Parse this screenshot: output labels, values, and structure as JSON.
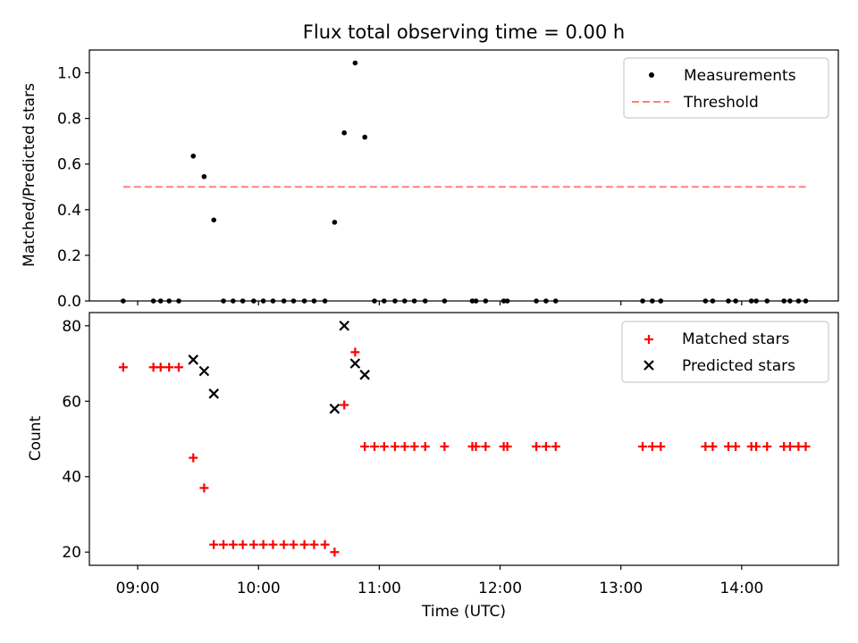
{
  "chart_data": {
    "title": "Flux total observing time = 0.00 h",
    "xlabel": "Time (UTC)",
    "xticks": [
      {
        "label": "09:00",
        "h": 9.0
      },
      {
        "label": "10:00",
        "h": 10.0
      },
      {
        "label": "11:00",
        "h": 11.0
      },
      {
        "label": "12:00",
        "h": 12.0
      },
      {
        "label": "13:00",
        "h": 13.0
      },
      {
        "label": "14:00",
        "h": 14.0
      }
    ],
    "xlim_hours": [
      8.6,
      14.8
    ],
    "panels": [
      {
        "type": "scatter",
        "ylabel": "Matched/Predicted stars",
        "ylim": [
          0,
          1.1
        ],
        "yticks": [
          {
            "label": "0.0",
            "v": 0.0
          },
          {
            "label": "0.2",
            "v": 0.2
          },
          {
            "label": "0.4",
            "v": 0.4
          },
          {
            "label": "0.6",
            "v": 0.6
          },
          {
            "label": "0.8",
            "v": 0.8
          },
          {
            "label": "1.0",
            "v": 1.0
          }
        ],
        "legend_position": "top-right",
        "series": [
          {
            "name": "Measurements",
            "marker": "dot",
            "color": "#000000",
            "points": [
              [
                8.88,
                0
              ],
              [
                9.13,
                0
              ],
              [
                9.19,
                0
              ],
              [
                9.26,
                0
              ],
              [
                9.34,
                0
              ],
              [
                9.46,
                0.635
              ],
              [
                9.55,
                0.545
              ],
              [
                9.63,
                0.355
              ],
              [
                9.71,
                0
              ],
              [
                9.79,
                0
              ],
              [
                9.87,
                0
              ],
              [
                9.96,
                0
              ],
              [
                10.04,
                0
              ],
              [
                10.12,
                0
              ],
              [
                10.21,
                0
              ],
              [
                10.29,
                0
              ],
              [
                10.38,
                0
              ],
              [
                10.46,
                0
              ],
              [
                10.55,
                0
              ],
              [
                10.63,
                0.345
              ],
              [
                10.71,
                0.737
              ],
              [
                10.8,
                1.043
              ],
              [
                10.88,
                0.718
              ],
              [
                10.96,
                0
              ],
              [
                11.04,
                0
              ],
              [
                11.13,
                0
              ],
              [
                11.21,
                0
              ],
              [
                11.29,
                0
              ],
              [
                11.38,
                0
              ],
              [
                11.54,
                0
              ],
              [
                11.77,
                0
              ],
              [
                11.8,
                0
              ],
              [
                11.88,
                0
              ],
              [
                12.03,
                0
              ],
              [
                12.06,
                0
              ],
              [
                12.3,
                0
              ],
              [
                12.38,
                0
              ],
              [
                12.46,
                0
              ],
              [
                13.18,
                0
              ],
              [
                13.26,
                0
              ],
              [
                13.33,
                0
              ],
              [
                13.7,
                0
              ],
              [
                13.76,
                0
              ],
              [
                13.89,
                0
              ],
              [
                13.95,
                0
              ],
              [
                14.08,
                0
              ],
              [
                14.12,
                0
              ],
              [
                14.21,
                0
              ],
              [
                14.35,
                0
              ],
              [
                14.4,
                0
              ],
              [
                14.47,
                0
              ],
              [
                14.53,
                0
              ]
            ]
          },
          {
            "name": "Threshold",
            "marker": "dashed-line",
            "color": "#ff7f7f",
            "points": [
              [
                8.88,
                0.5
              ],
              [
                14.53,
                0.5
              ]
            ]
          }
        ]
      },
      {
        "type": "scatter",
        "ylabel": "Count",
        "ylim": [
          16.5,
          83.5
        ],
        "yticks": [
          {
            "label": "20",
            "v": 20
          },
          {
            "label": "40",
            "v": 40
          },
          {
            "label": "60",
            "v": 60
          },
          {
            "label": "80",
            "v": 80
          }
        ],
        "legend_position": "top-right",
        "series": [
          {
            "name": "Matched stars",
            "marker": "plus",
            "color": "#ff0000",
            "points": [
              [
                8.88,
                69
              ],
              [
                9.13,
                69
              ],
              [
                9.19,
                69
              ],
              [
                9.26,
                69
              ],
              [
                9.34,
                69
              ],
              [
                9.46,
                45
              ],
              [
                9.55,
                37
              ],
              [
                9.63,
                22
              ],
              [
                9.71,
                22
              ],
              [
                9.79,
                22
              ],
              [
                9.87,
                22
              ],
              [
                9.96,
                22
              ],
              [
                10.04,
                22
              ],
              [
                10.12,
                22
              ],
              [
                10.21,
                22
              ],
              [
                10.29,
                22
              ],
              [
                10.38,
                22
              ],
              [
                10.46,
                22
              ],
              [
                10.55,
                22
              ],
              [
                10.63,
                20
              ],
              [
                10.71,
                59
              ],
              [
                10.8,
                73
              ],
              [
                10.88,
                48
              ],
              [
                10.96,
                48
              ],
              [
                11.04,
                48
              ],
              [
                11.13,
                48
              ],
              [
                11.21,
                48
              ],
              [
                11.29,
                48
              ],
              [
                11.38,
                48
              ],
              [
                11.54,
                48
              ],
              [
                11.77,
                48
              ],
              [
                11.8,
                48
              ],
              [
                11.88,
                48
              ],
              [
                12.03,
                48
              ],
              [
                12.06,
                48
              ],
              [
                12.3,
                48
              ],
              [
                12.38,
                48
              ],
              [
                12.46,
                48
              ],
              [
                13.18,
                48
              ],
              [
                13.26,
                48
              ],
              [
                13.33,
                48
              ],
              [
                13.7,
                48
              ],
              [
                13.76,
                48
              ],
              [
                13.89,
                48
              ],
              [
                13.95,
                48
              ],
              [
                14.08,
                48
              ],
              [
                14.12,
                48
              ],
              [
                14.21,
                48
              ],
              [
                14.35,
                48
              ],
              [
                14.4,
                48
              ],
              [
                14.47,
                48
              ],
              [
                14.53,
                48
              ]
            ]
          },
          {
            "name": "Predicted stars",
            "marker": "x",
            "color": "#000000",
            "points": [
              [
                9.46,
                71
              ],
              [
                9.55,
                68
              ],
              [
                9.63,
                62
              ],
              [
                10.63,
                58
              ],
              [
                10.71,
                80
              ],
              [
                10.8,
                70
              ],
              [
                10.88,
                67
              ]
            ]
          }
        ]
      }
    ]
  }
}
